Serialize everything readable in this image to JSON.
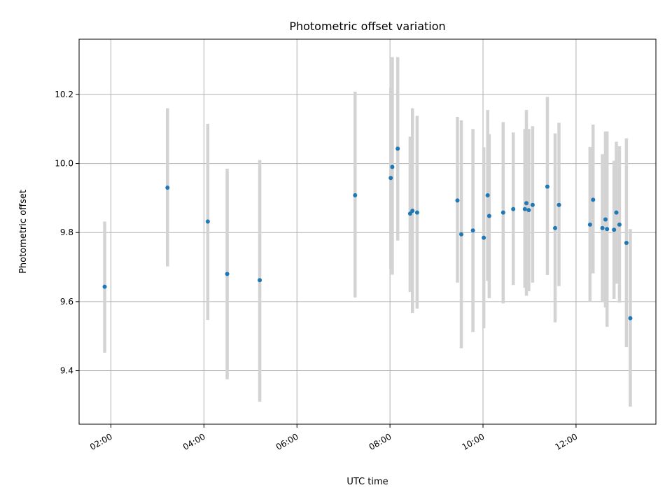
{
  "chart_data": {
    "type": "scatter",
    "title": "Photometric offset variation",
    "xlabel": "UTC time",
    "ylabel": "Photometric offset",
    "x_ticks": [
      "02:00",
      "04:00",
      "06:00",
      "08:00",
      "10:00",
      "12:00"
    ],
    "y_ticks": [
      "9.4",
      "9.6",
      "9.8",
      "10.0",
      "10.2"
    ],
    "xlim": [
      "01:19",
      "13:43"
    ],
    "ylim": [
      9.245,
      10.36
    ],
    "grid": true,
    "colors": {
      "points": "#1f77b4",
      "errorbars": "#d3d3d3",
      "grid": "#b0b0b0"
    },
    "points": [
      {
        "t": "01:52",
        "y": 9.643,
        "lo": 9.452,
        "hi": 9.832
      },
      {
        "t": "03:13",
        "y": 9.93,
        "lo": 9.702,
        "hi": 10.16
      },
      {
        "t": "04:05",
        "y": 9.832,
        "lo": 9.547,
        "hi": 10.115
      },
      {
        "t": "04:30",
        "y": 9.68,
        "lo": 9.375,
        "hi": 9.985
      },
      {
        "t": "05:12",
        "y": 9.662,
        "lo": 9.31,
        "hi": 10.01
      },
      {
        "t": "07:15",
        "y": 9.908,
        "lo": 9.612,
        "hi": 10.208
      },
      {
        "t": "08:01",
        "y": 9.958,
        "lo": 9.695,
        "hi": 10.22
      },
      {
        "t": "08:03",
        "y": 9.99,
        "lo": 9.678,
        "hi": 10.308
      },
      {
        "t": "08:10",
        "y": 10.043,
        "lo": 9.777,
        "hi": 10.308
      },
      {
        "t": "08:26",
        "y": 9.855,
        "lo": 9.628,
        "hi": 10.078
      },
      {
        "t": "08:29",
        "y": 9.863,
        "lo": 9.567,
        "hi": 10.16
      },
      {
        "t": "08:35",
        "y": 9.858,
        "lo": 9.58,
        "hi": 10.138
      },
      {
        "t": "09:27",
        "y": 9.893,
        "lo": 9.655,
        "hi": 10.135
      },
      {
        "t": "09:32",
        "y": 9.795,
        "lo": 9.465,
        "hi": 10.125
      },
      {
        "t": "09:47",
        "y": 9.806,
        "lo": 9.512,
        "hi": 10.1
      },
      {
        "t": "10:01",
        "y": 9.785,
        "lo": 9.523,
        "hi": 10.047
      },
      {
        "t": "10:06",
        "y": 9.908,
        "lo": 9.66,
        "hi": 10.155
      },
      {
        "t": "10:08",
        "y": 9.848,
        "lo": 9.61,
        "hi": 10.085
      },
      {
        "t": "10:26",
        "y": 9.858,
        "lo": 9.595,
        "hi": 10.12
      },
      {
        "t": "10:39",
        "y": 9.868,
        "lo": 9.648,
        "hi": 10.09
      },
      {
        "t": "10:54",
        "y": 9.868,
        "lo": 9.64,
        "hi": 10.1
      },
      {
        "t": "10:56",
        "y": 9.885,
        "lo": 9.617,
        "hi": 10.155
      },
      {
        "t": "10:59",
        "y": 9.865,
        "lo": 9.63,
        "hi": 10.1
      },
      {
        "t": "11:04",
        "y": 9.88,
        "lo": 9.655,
        "hi": 10.108
      },
      {
        "t": "11:23",
        "y": 9.933,
        "lo": 9.677,
        "hi": 10.193
      },
      {
        "t": "11:33",
        "y": 9.813,
        "lo": 9.54,
        "hi": 10.087
      },
      {
        "t": "11:38",
        "y": 9.88,
        "lo": 9.645,
        "hi": 10.118
      },
      {
        "t": "12:18",
        "y": 9.823,
        "lo": 9.6,
        "hi": 10.048
      },
      {
        "t": "12:22",
        "y": 9.895,
        "lo": 9.682,
        "hi": 10.113
      },
      {
        "t": "12:34",
        "y": 9.813,
        "lo": 9.598,
        "hi": 10.027
      },
      {
        "t": "12:38",
        "y": 9.838,
        "lo": 9.583,
        "hi": 10.093
      },
      {
        "t": "12:40",
        "y": 9.81,
        "lo": 9.527,
        "hi": 10.093
      },
      {
        "t": "12:49",
        "y": 9.808,
        "lo": 9.608,
        "hi": 10.008
      },
      {
        "t": "12:52",
        "y": 9.858,
        "lo": 9.652,
        "hi": 10.063
      },
      {
        "t": "12:56",
        "y": 9.823,
        "lo": 9.597,
        "hi": 10.05
      },
      {
        "t": "13:05",
        "y": 9.77,
        "lo": 9.468,
        "hi": 10.073
      },
      {
        "t": "13:10",
        "y": 9.552,
        "lo": 9.296,
        "hi": 9.81
      }
    ]
  }
}
